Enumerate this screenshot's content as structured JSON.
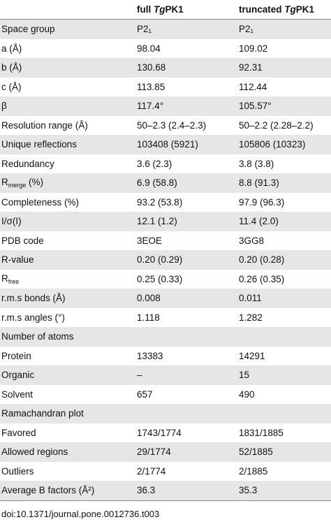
{
  "table": {
    "columns": [
      [
        {
          "text": "full "
        },
        {
          "text": "Tg",
          "style": "italic"
        },
        {
          "text": "PK1"
        }
      ],
      [
        {
          "text": "truncated "
        },
        {
          "text": "Tg",
          "style": "italic"
        },
        {
          "text": "PK1"
        }
      ]
    ],
    "rows": [
      [
        "Space group",
        "P2₁",
        "P2₁"
      ],
      [
        "a (Å)",
        "98.04",
        "109.02"
      ],
      [
        "b (Å)",
        "130.68",
        "92.31"
      ],
      [
        "c (Å)",
        "113.85",
        "112.44"
      ],
      [
        "β",
        "117.4°",
        "105.57°"
      ],
      [
        "Resolution range (Å)",
        "50–2.3 (2.4–2.3)",
        "50–2.2 (2.28–2.2)"
      ],
      [
        "Unique reflections",
        "103408 (5921)",
        "105806 (10323)"
      ],
      [
        "Redundancy",
        "3.6 (2.3)",
        "3.8 (3.8)"
      ],
      [
        [
          {
            "text": "R"
          },
          {
            "text": "merge",
            "style": "sub"
          },
          {
            "text": " (%)"
          }
        ],
        "6.9 (58.8)",
        "8.8 (91.3)"
      ],
      [
        "Completeness (%)",
        "93.2 (53.8)",
        "97.9 (96.3)"
      ],
      [
        "I/σ(I)",
        "12.1 (1.2)",
        "11.4 (2.0)"
      ],
      [
        "PDB code",
        "3EOE",
        "3GG8"
      ],
      [
        "R-value",
        "0.20 (0.29)",
        "0.20 (0.28)"
      ],
      [
        [
          {
            "text": "R"
          },
          {
            "text": "free",
            "style": "sub"
          }
        ],
        "0.25 (0.33)",
        "0.26 (0.35)"
      ],
      [
        "r.m.s bonds (Å)",
        "0.008",
        "0.011"
      ],
      [
        "r.m.s angles (°)",
        "1.118",
        "1.282"
      ],
      [
        "Number of atoms"
      ],
      [
        "Protein",
        "13383",
        "14291"
      ],
      [
        "Organic",
        "–",
        "15"
      ],
      [
        "Solvent",
        "657",
        "490"
      ],
      [
        "Ramachandran plot"
      ],
      [
        "Favored",
        "1743/1774",
        "1831/1885"
      ],
      [
        "Allowed regions",
        "29/1774",
        "52/1885"
      ],
      [
        "Outliers",
        "2/1774",
        "2/1885"
      ],
      [
        "Average B factors (Å²)",
        "36.3",
        "35.3"
      ]
    ]
  },
  "footer": "doi:10.1371/journal.pone.0012736.t003"
}
